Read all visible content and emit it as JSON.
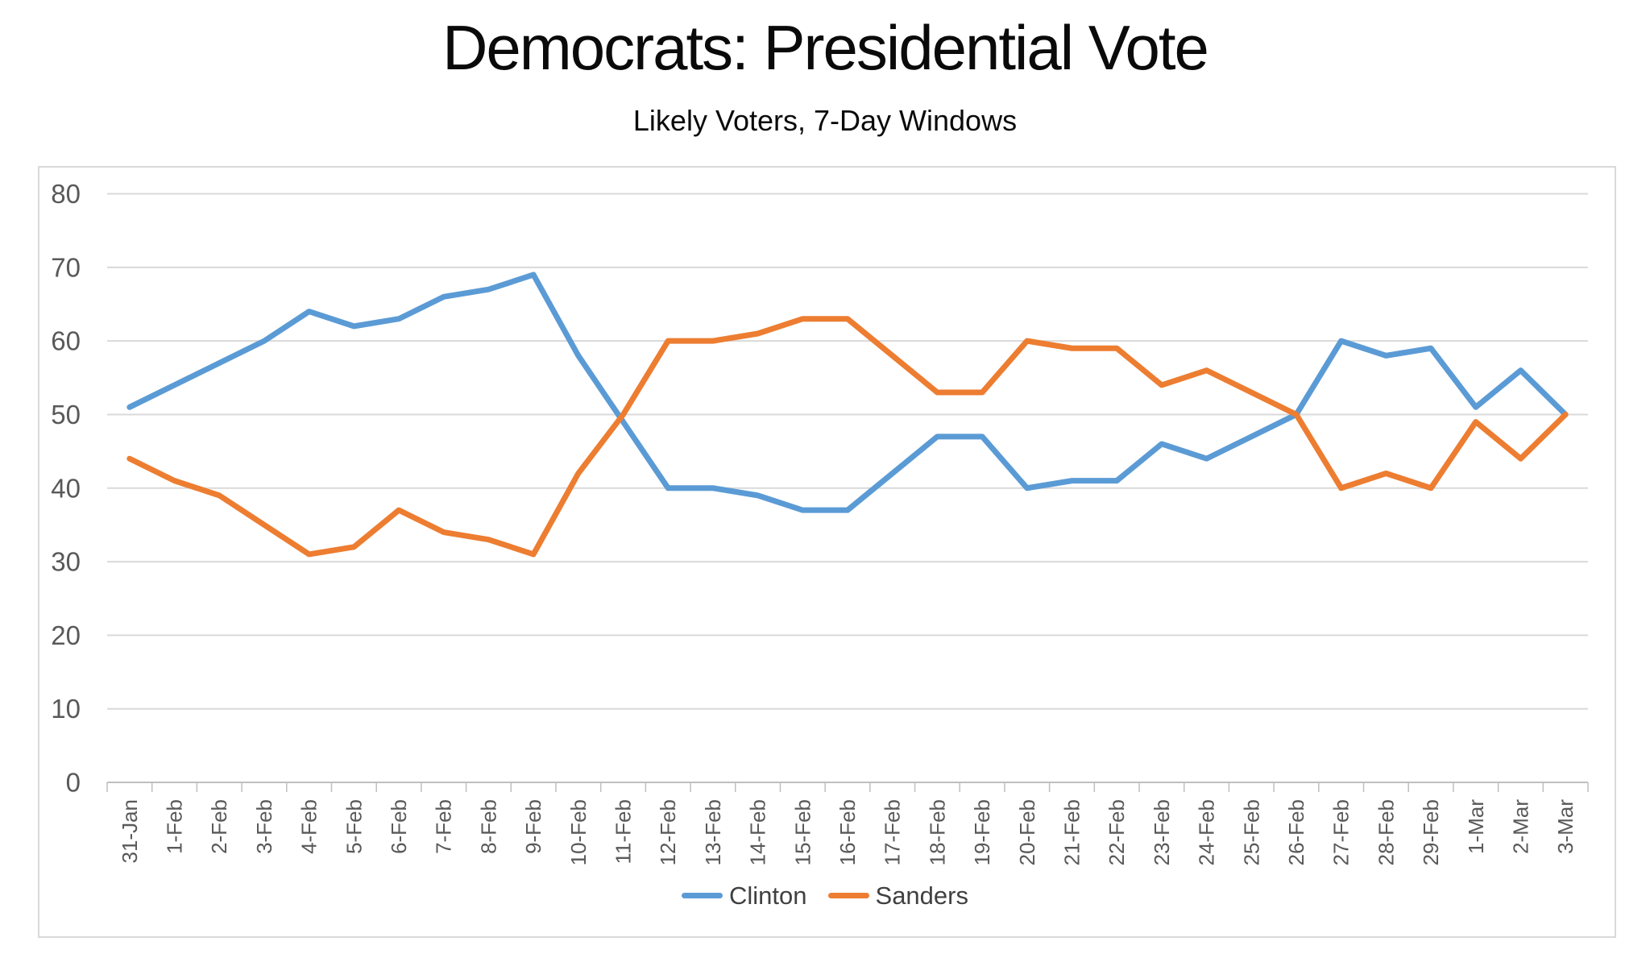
{
  "title": "Democrats: Presidential Vote",
  "subtitle": "Likely Voters, 7-Day Windows",
  "chart_data": {
    "type": "line",
    "categories": [
      "31-Jan",
      "1-Feb",
      "2-Feb",
      "3-Feb",
      "4-Feb",
      "5-Feb",
      "6-Feb",
      "7-Feb",
      "8-Feb",
      "9-Feb",
      "10-Feb",
      "11-Feb",
      "12-Feb",
      "13-Feb",
      "14-Feb",
      "15-Feb",
      "16-Feb",
      "17-Feb",
      "18-Feb",
      "19-Feb",
      "20-Feb",
      "21-Feb",
      "22-Feb",
      "23-Feb",
      "24-Feb",
      "25-Feb",
      "26-Feb",
      "27-Feb",
      "28-Feb",
      "29-Feb",
      "1-Mar",
      "2-Mar",
      "3-Mar"
    ],
    "series": [
      {
        "name": "Clinton",
        "color": "#5B9BD5",
        "values": [
          51,
          54,
          57,
          60,
          64,
          62,
          63,
          66,
          67,
          69,
          58,
          49,
          40,
          40,
          39,
          37,
          37,
          42,
          47,
          47,
          40,
          41,
          41,
          46,
          44,
          47,
          50,
          60,
          58,
          59,
          51,
          56,
          50
        ]
      },
      {
        "name": "Sanders",
        "color": "#ED7D31",
        "values": [
          44,
          41,
          39,
          35,
          31,
          32,
          37,
          34,
          33,
          31,
          42,
          50,
          60,
          60,
          61,
          63,
          63,
          58,
          53,
          53,
          60,
          59,
          59,
          54,
          56,
          53,
          50,
          40,
          42,
          40,
          49,
          44,
          50
        ]
      }
    ],
    "title": "Democrats: Presidential Vote",
    "xlabel": "",
    "ylabel": "",
    "ylim": [
      0,
      80
    ],
    "yticks": [
      0,
      10,
      20,
      30,
      40,
      50,
      60,
      70,
      80
    ],
    "grid": true,
    "legend_position": "bottom",
    "x_label_rotation": -90
  }
}
